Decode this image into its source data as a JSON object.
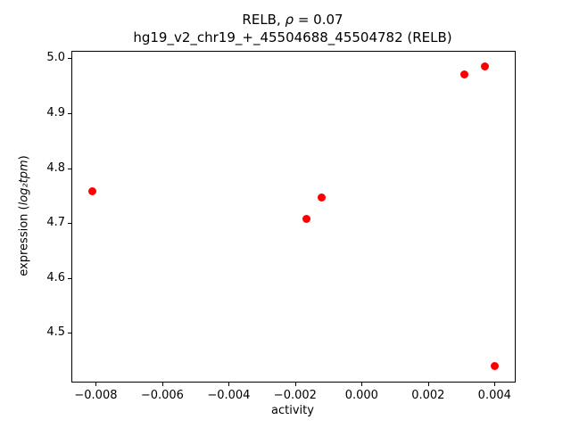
{
  "figure": {
    "background": "#ffffff",
    "title": {
      "prefix": "RELB, ",
      "rho": "ρ",
      "rest": " = 0.07"
    },
    "subtitle": "hg19_v2_chr19_+_45504688_45504782 (RELB)",
    "xlabel": "activity",
    "ylabel": {
      "prefix": "expression (",
      "math": "log₂tpm",
      "suffix": ")"
    }
  },
  "chart_data": {
    "type": "scatter",
    "title": "RELB, ρ = 0.07",
    "subtitle": "hg19_v2_chr19_+_45504688_45504782 (RELB)",
    "xlabel": "activity",
    "ylabel": "expression (log2 tpm)",
    "legend": "none",
    "grid": false,
    "marker_color": "#ff0000",
    "marker_shape": "circle",
    "xlim": [
      -0.00871,
      0.00461
    ],
    "ylim": [
      4.411,
      5.012
    ],
    "xticks": {
      "values": [
        -0.008,
        -0.006,
        -0.004,
        -0.002,
        0.0,
        0.002,
        0.004
      ],
      "labels": [
        "−0.008",
        "−0.006",
        "−0.004",
        "−0.002",
        "0.000",
        "0.002",
        "0.004"
      ]
    },
    "yticks": {
      "values": [
        4.5,
        4.6,
        4.7,
        4.8,
        4.9,
        5.0
      ],
      "labels": [
        "4.5",
        "4.6",
        "4.7",
        "4.8",
        "4.9",
        "5.0"
      ]
    },
    "points": [
      [
        -0.0081,
        4.758
      ],
      [
        -0.00165,
        4.708
      ],
      [
        -0.0012,
        4.747
      ],
      [
        0.0031,
        4.971
      ],
      [
        0.0037,
        4.986
      ],
      [
        0.004,
        4.439
      ]
    ]
  }
}
